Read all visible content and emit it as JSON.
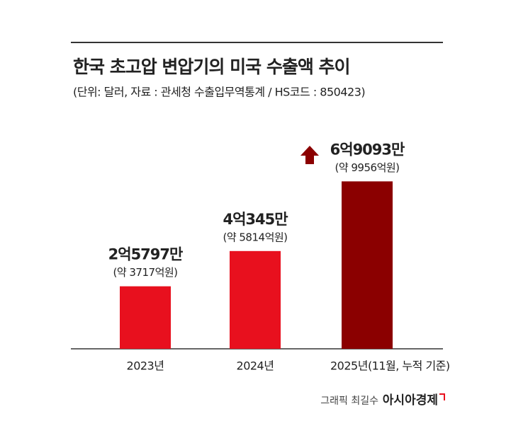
{
  "chart_data": {
    "type": "bar",
    "title": "한국 초고압 변압기의 미국 수출액 추이",
    "subtitle": "(단위: 달러, 자료 : 관세청 수출입무역통계 / HS코드 : 850423)",
    "categories": [
      "2023년",
      "2024년",
      "2025년(11월, 누적 기준)"
    ],
    "values": [
      257970000,
      403450000,
      690930000
    ],
    "value_labels": [
      "2억5797만",
      "4억345만",
      "6억9093만"
    ],
    "annotations": [
      "(약 3717억원)",
      "(약 5814억원)",
      "(약 9956억원)"
    ],
    "colors": [
      "#e8101e",
      "#e8101e",
      "#8b0000"
    ],
    "ylim": [
      0,
      800000000
    ],
    "credit": "그래픽 최길수",
    "source": "아시아경제"
  }
}
